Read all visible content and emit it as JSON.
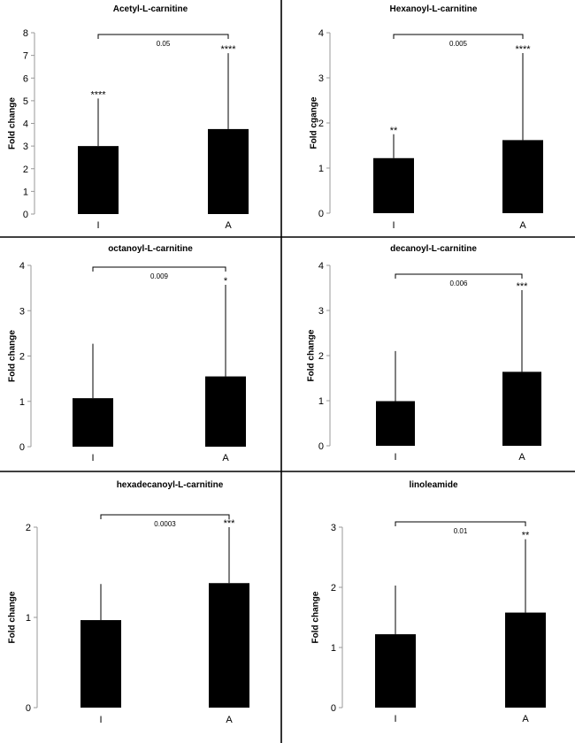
{
  "chart_data": [
    {
      "type": "bar",
      "title": "Acetyl-L-carnitine",
      "ylabel": "Fold change",
      "categories": [
        "I",
        "A"
      ],
      "values": [
        3.0,
        3.75
      ],
      "error_upper": [
        5.1,
        7.1
      ],
      "ylim": [
        0,
        8
      ],
      "yticks": [
        "0",
        "1",
        "2",
        "3",
        "4",
        "5",
        "6",
        "7",
        "8"
      ],
      "significance": [
        "****",
        "****"
      ],
      "pvalue": "0.05"
    },
    {
      "type": "bar",
      "title": "Hexanoyl-L-carnitine",
      "ylabel": "Fold cgange",
      "categories": [
        "I",
        "A"
      ],
      "values": [
        1.22,
        1.62
      ],
      "error_upper": [
        1.75,
        3.55
      ],
      "ylim": [
        0,
        4
      ],
      "yticks": [
        "0",
        "1",
        "2",
        "3",
        "4"
      ],
      "significance": [
        "**",
        "****"
      ],
      "pvalue": "0.005"
    },
    {
      "type": "bar",
      "title": "octanoyl-L-carnitine",
      "ylabel": "Fold change",
      "categories": [
        "I",
        "A"
      ],
      "values": [
        1.07,
        1.55
      ],
      "error_upper": [
        2.27,
        3.57
      ],
      "ylim": [
        0,
        4
      ],
      "yticks": [
        "0",
        "1",
        "2",
        "3",
        "4"
      ],
      "significance": [
        "",
        "*"
      ],
      "pvalue": "0.009"
    },
    {
      "type": "bar",
      "title": "decanoyl-L-carnitine",
      "ylabel": "Fold change",
      "categories": [
        "I",
        "A"
      ],
      "values": [
        0.99,
        1.64
      ],
      "error_upper": [
        2.1,
        3.45
      ],
      "ylim": [
        0,
        4
      ],
      "yticks": [
        "0",
        "1",
        "2",
        "3",
        "4"
      ],
      "significance": [
        "",
        "***"
      ],
      "pvalue": "0.006"
    },
    {
      "type": "bar",
      "title": "hexadecanoyl-L-carnitine",
      "ylabel": "Fold change",
      "categories": [
        "I",
        "A"
      ],
      "values": [
        0.97,
        1.38
      ],
      "error_upper": [
        1.37,
        2.0
      ],
      "ylim": [
        0,
        2
      ],
      "yticks": [
        "0",
        "1",
        "2"
      ],
      "significance": [
        "",
        "***"
      ],
      "pvalue": "0.0003"
    },
    {
      "type": "bar",
      "title": "linoleamide",
      "ylabel": "Fold change",
      "categories": [
        "I",
        "A"
      ],
      "values": [
        1.22,
        1.58
      ],
      "error_upper": [
        2.03,
        2.8
      ],
      "ylim": [
        0,
        3
      ],
      "yticks": [
        "0",
        "1",
        "2",
        "3"
      ],
      "significance": [
        "",
        "**"
      ],
      "pvalue": "0.01"
    }
  ],
  "colors": {
    "bar": "#000000",
    "axis": "#999999",
    "divider": "#000000"
  }
}
